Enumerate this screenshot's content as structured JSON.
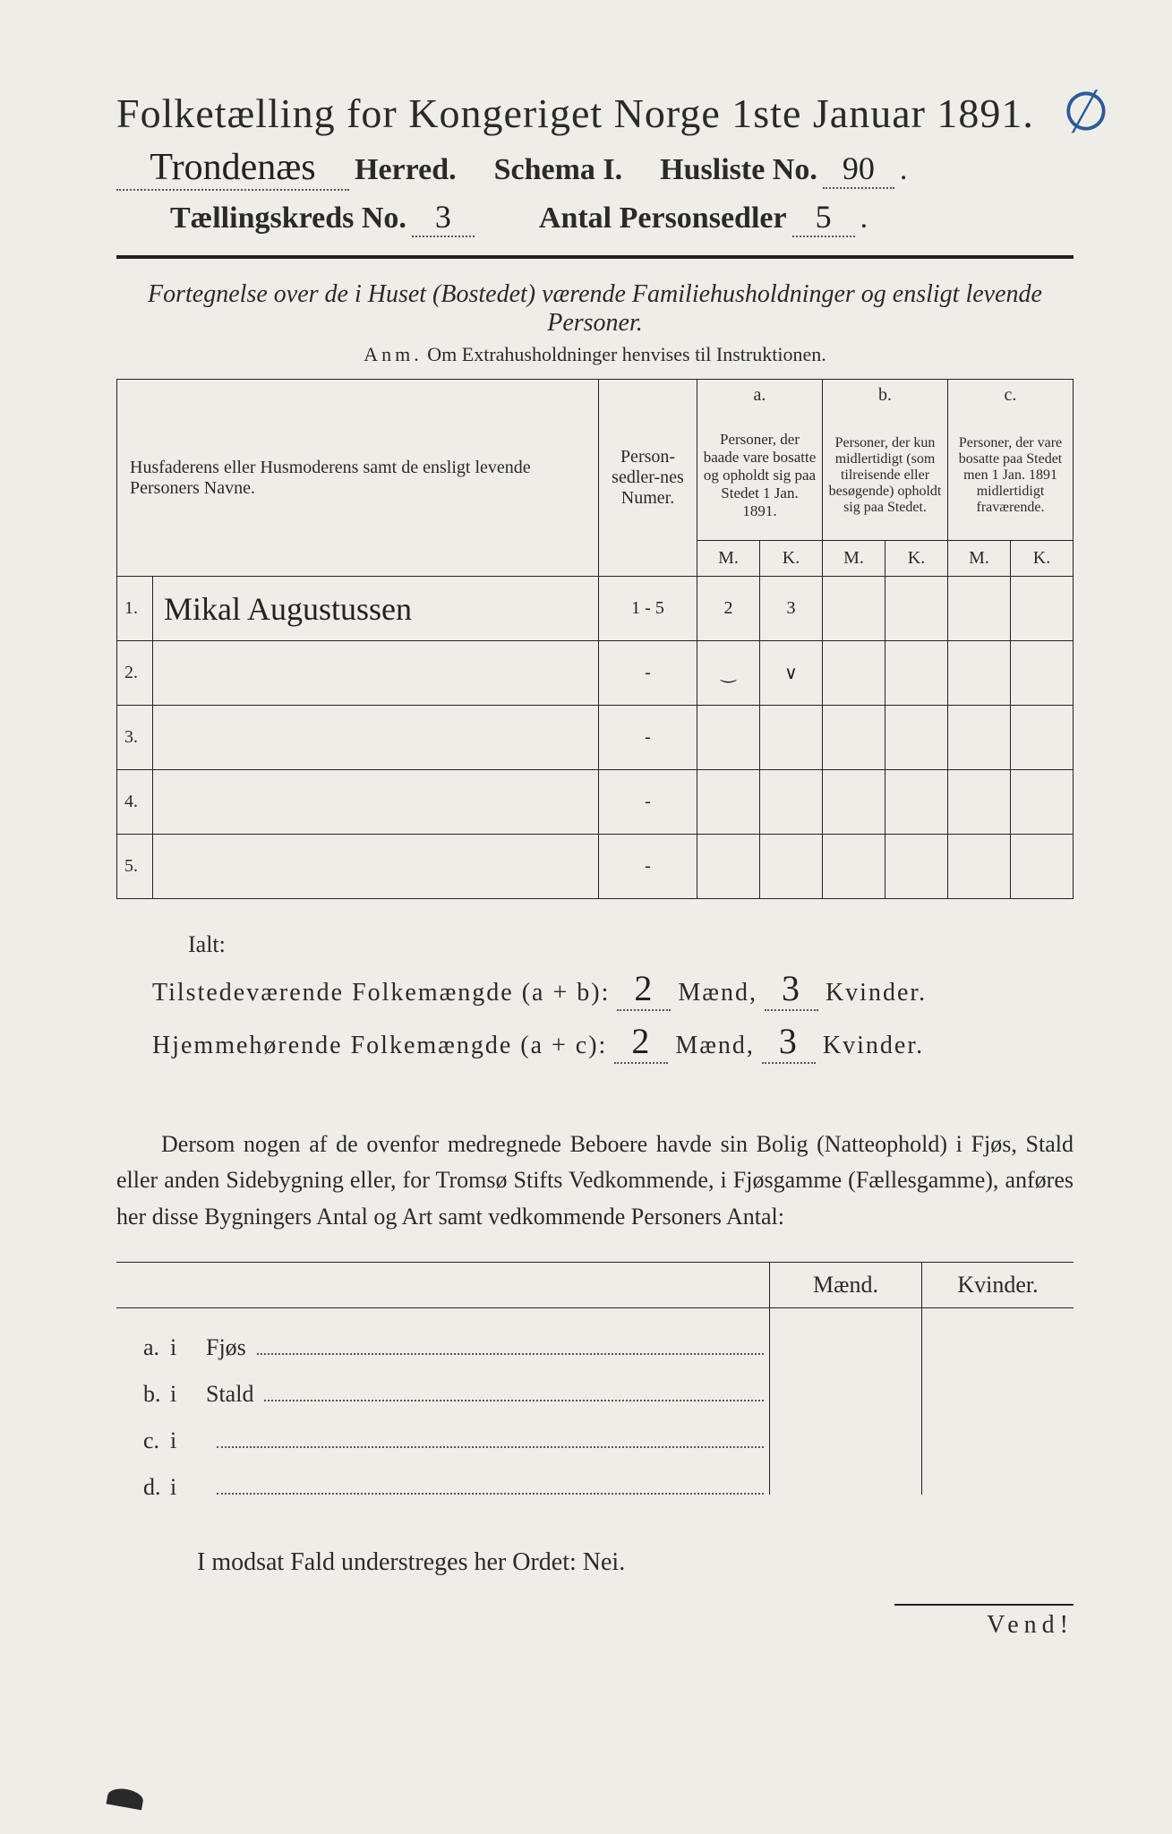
{
  "title": "Folketælling for Kongeriget Norge 1ste Januar 1891.",
  "annotation_mark": "∅",
  "line2": {
    "herred_value": "Trondenæs",
    "herred_label": "Herred.",
    "schema_label": "Schema I.",
    "husliste_label": "Husliste No.",
    "husliste_value": "90"
  },
  "line3": {
    "kreds_label": "Tællingskreds No.",
    "kreds_value": "3",
    "antal_label": "Antal Personsedler",
    "antal_value": "5"
  },
  "subtitle": "Fortegnelse over de i Huset (Bostedet) værende Familiehusholdninger og ensligt levende Personer.",
  "anm_label": "Anm.",
  "anm_text": "Om Extrahusholdninger henvises til Instruktionen.",
  "table": {
    "col_names": "Husfaderens eller Husmoderens samt de ensligt levende Personers Navne.",
    "col_numer": "Person-sedler-nes Numer.",
    "col_a_label": "a.",
    "col_a": "Personer, der baade vare bosatte og opholdt sig paa Stedet 1 Jan. 1891.",
    "col_b_label": "b.",
    "col_b": "Personer, der kun midlertidigt (som tilreisende eller besøgende) opholdt sig paa Stedet.",
    "col_c_label": "c.",
    "col_c": "Personer, der vare bosatte paa Stedet men 1 Jan. 1891 midlertidigt fraværende.",
    "M": "M.",
    "K": "K.",
    "rows": [
      {
        "n": "1.",
        "name": "Mikal Augustussen",
        "numer": "1 - 5",
        "aM": "2",
        "aK": "3",
        "bM": "",
        "bK": "",
        "cM": "",
        "cK": ""
      },
      {
        "n": "2.",
        "name": "",
        "numer": "-",
        "aM": "‿",
        "aK": "∨",
        "bM": "",
        "bK": "",
        "cM": "",
        "cK": ""
      },
      {
        "n": "3.",
        "name": "",
        "numer": "-",
        "aM": "",
        "aK": "",
        "bM": "",
        "bK": "",
        "cM": "",
        "cK": ""
      },
      {
        "n": "4.",
        "name": "",
        "numer": "-",
        "aM": "",
        "aK": "",
        "bM": "",
        "bK": "",
        "cM": "",
        "cK": ""
      },
      {
        "n": "5.",
        "name": "",
        "numer": "-",
        "aM": "",
        "aK": "",
        "bM": "",
        "bK": "",
        "cM": "",
        "cK": ""
      }
    ]
  },
  "ialt": "Ialt:",
  "totals": {
    "tilstede_label": "Tilstedeværende Folkemængde (a + b):",
    "tilstede_m": "2",
    "tilstede_k": "3",
    "hjemme_label": "Hjemmehørende Folkemængde (a + c):",
    "hjemme_m": "2",
    "hjemme_k": "3",
    "maend": "Mænd,",
    "kvinder": "Kvinder."
  },
  "paragraph": "Dersom nogen af de ovenfor medregnede Beboere havde sin Bolig (Natteophold) i Fjøs, Stald eller anden Sidebygning eller, for Tromsø Stifts Vedkommende, i Fjøsgamme (Fællesgamme), anføres her disse Bygningers Antal og Art samt vedkommende Personers Antal:",
  "outbuildings": {
    "maend": "Mænd.",
    "kvinder": "Kvinder.",
    "rows": [
      {
        "lab": "a.",
        "i": "i",
        "txt": "Fjøs"
      },
      {
        "lab": "b.",
        "i": "i",
        "txt": "Stald"
      },
      {
        "lab": "c.",
        "i": "i",
        "txt": ""
      },
      {
        "lab": "d.",
        "i": "i",
        "txt": ""
      }
    ]
  },
  "nei_line": "I modsat Fald understreges her Ordet: Nei.",
  "vend": "Vend!"
}
